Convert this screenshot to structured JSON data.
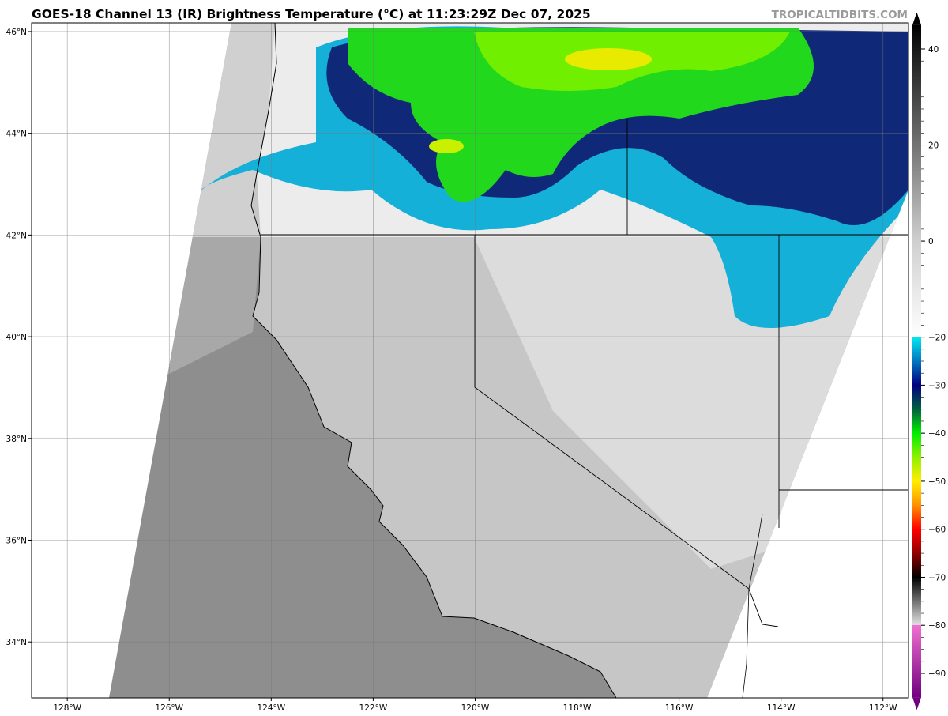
{
  "title": "GOES-18 Channel 13 (IR) Brightness Temperature (°C) at 11:23:29Z Dec 07, 2025",
  "watermark": "TROPICALTIDBITS.COM",
  "map": {
    "lon_range": [
      -128.7,
      -111.5
    ],
    "lat_range": [
      32.9,
      46.17
    ],
    "lon_ticks": [
      {
        "value": -128,
        "label": "128°W"
      },
      {
        "value": -126,
        "label": "126°W"
      },
      {
        "value": -124,
        "label": "124°W"
      },
      {
        "value": -122,
        "label": "122°W"
      },
      {
        "value": -120,
        "label": "120°W"
      },
      {
        "value": -118,
        "label": "118°W"
      },
      {
        "value": -116,
        "label": "116°W"
      },
      {
        "value": -114,
        "label": "114°W"
      },
      {
        "value": -112,
        "label": "112°W"
      }
    ],
    "lat_ticks": [
      {
        "value": 46,
        "label": "46°N"
      },
      {
        "value": 44,
        "label": "44°N"
      },
      {
        "value": 42,
        "label": "42°N"
      },
      {
        "value": 40,
        "label": "40°N"
      },
      {
        "value": 38,
        "label": "38°N"
      },
      {
        "value": 36,
        "label": "36°N"
      },
      {
        "value": 34,
        "label": "34°N"
      }
    ],
    "grid": true
  },
  "colorbar": {
    "range": [
      -95,
      45
    ],
    "ticks": [
      "40",
      "20",
      "0",
      "−20",
      "−30",
      "−40",
      "−50",
      "−60",
      "−70",
      "−80",
      "−90"
    ],
    "tick_values": [
      40,
      20,
      0,
      -20,
      -30,
      -40,
      -50,
      -60,
      -70,
      -80,
      -90
    ],
    "stops": [
      {
        "t": 45,
        "color": "#000000"
      },
      {
        "t": 0,
        "color": "#cfcfcf"
      },
      {
        "t": -19.9,
        "color": "#ffffff"
      },
      {
        "t": -20,
        "color": "#00e8f0"
      },
      {
        "t": -25,
        "color": "#0077c0"
      },
      {
        "t": -30,
        "color": "#000080"
      },
      {
        "t": -35,
        "color": "#006040"
      },
      {
        "t": -40,
        "color": "#00ee00"
      },
      {
        "t": -45,
        "color": "#90f000"
      },
      {
        "t": -50,
        "color": "#ffee00"
      },
      {
        "t": -55,
        "color": "#ff9000"
      },
      {
        "t": -60,
        "color": "#ff0000"
      },
      {
        "t": -65,
        "color": "#900000"
      },
      {
        "t": -70,
        "color": "#000000"
      },
      {
        "t": -79.9,
        "color": "#e0e0e0"
      },
      {
        "t": -80,
        "color": "#f070d0"
      },
      {
        "t": -95,
        "color": "#700080"
      }
    ]
  }
}
